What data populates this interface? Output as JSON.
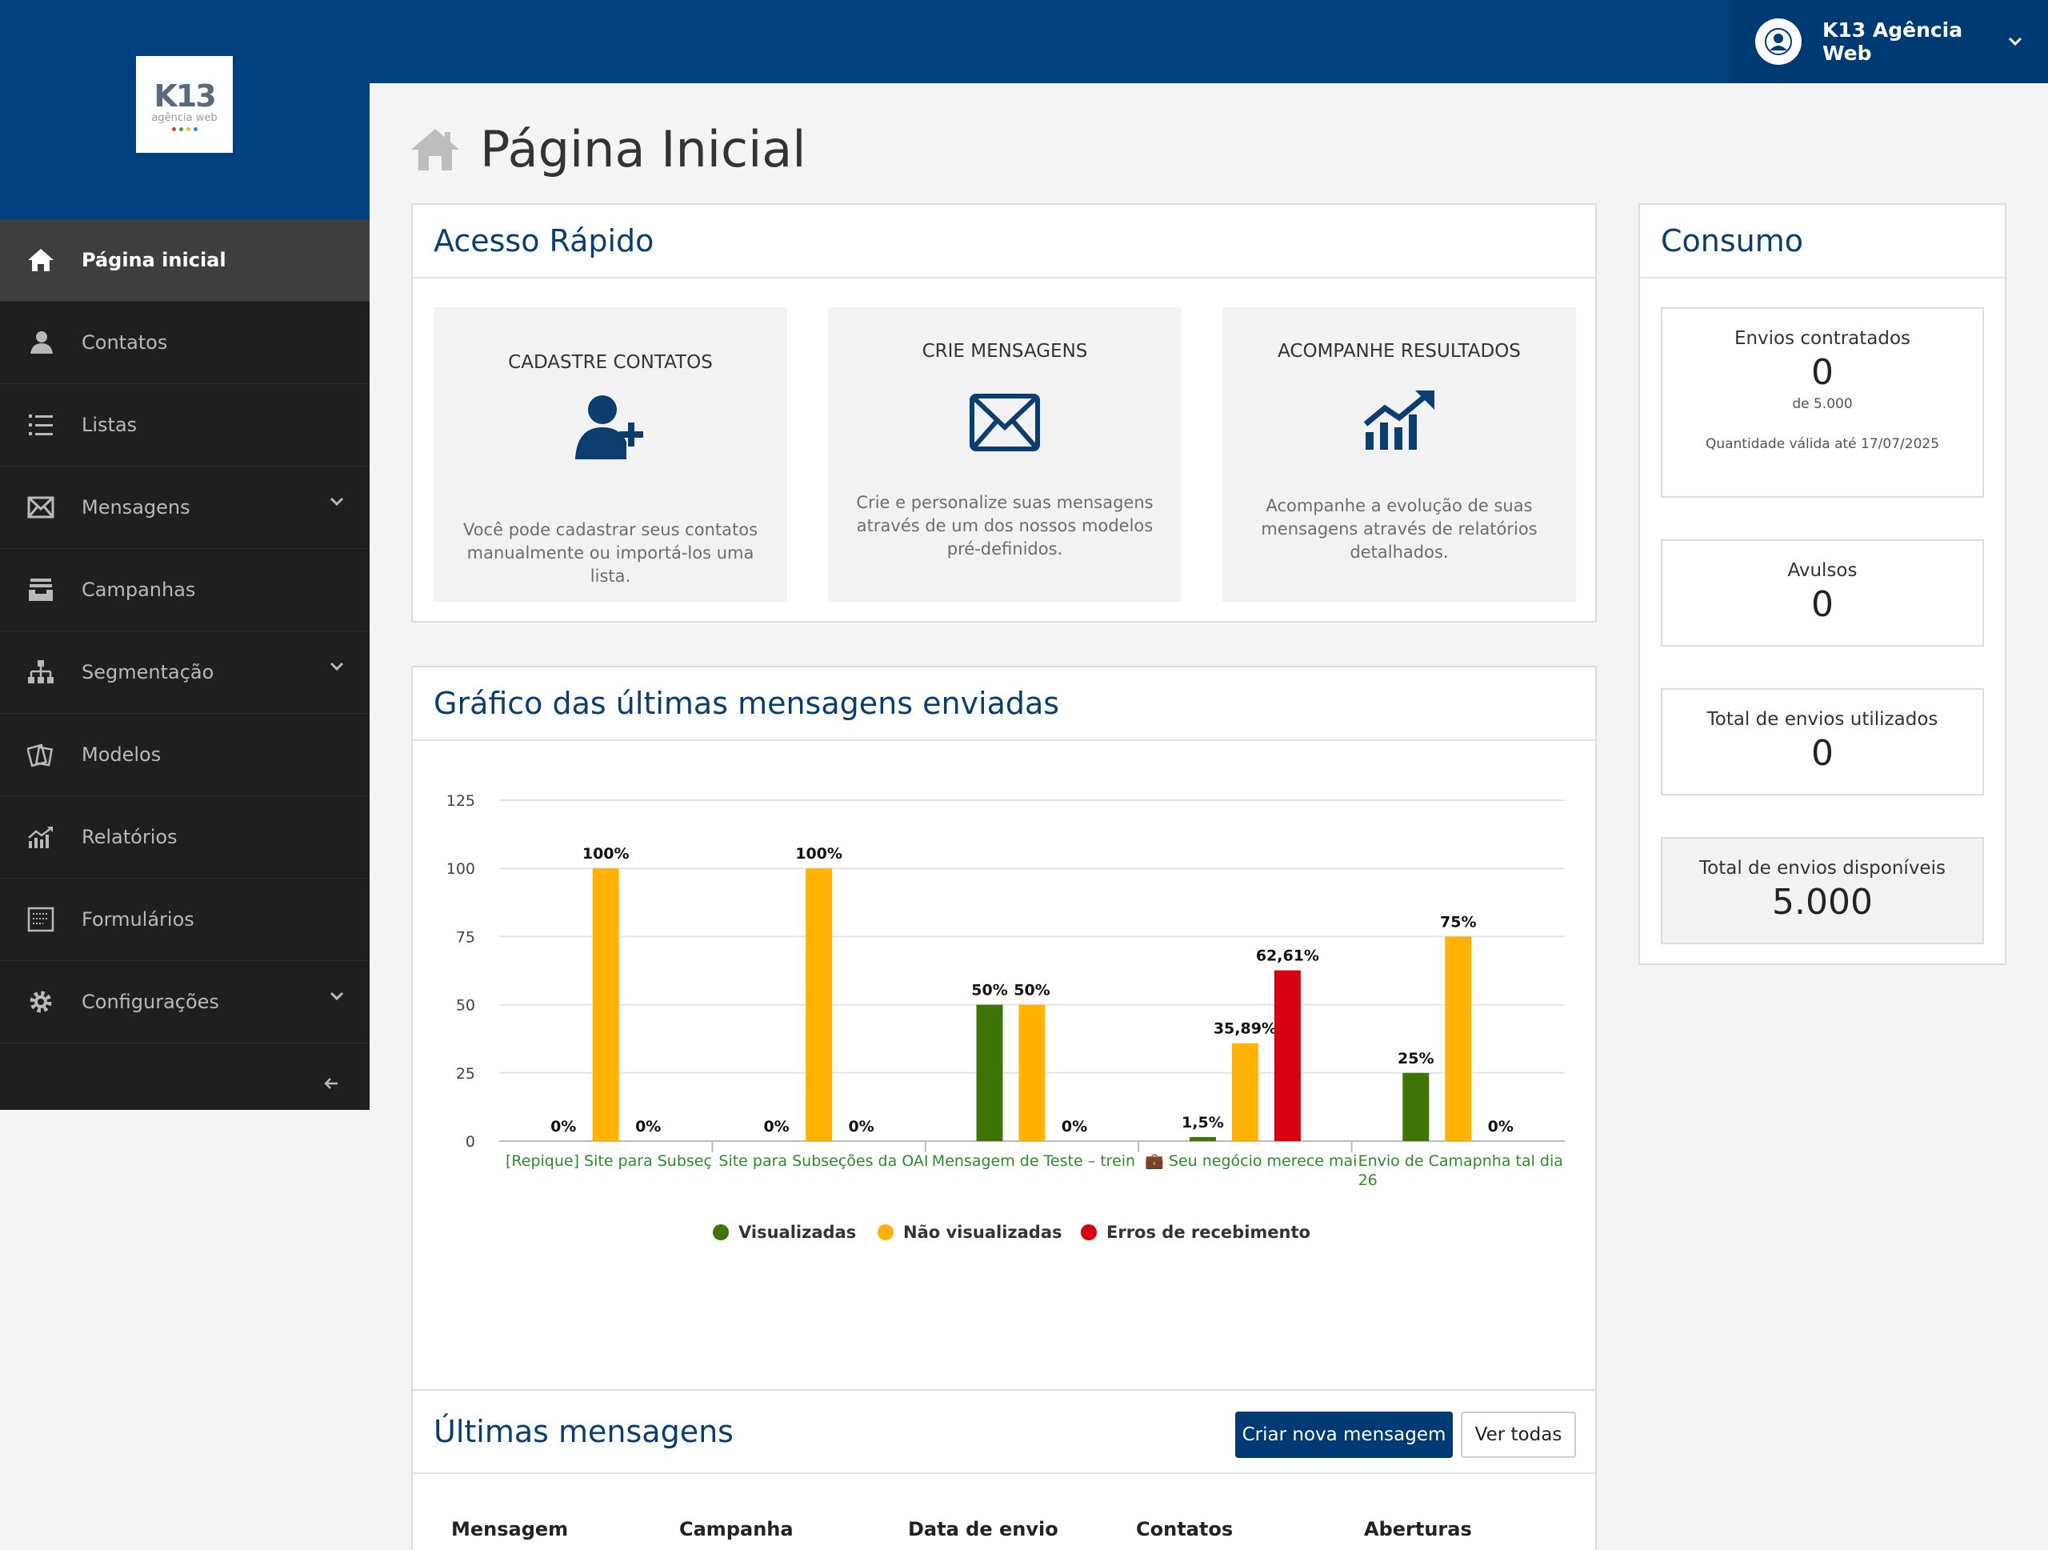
{
  "header": {
    "user_name": "K13 Agência Web"
  },
  "logo": {
    "text": "K13",
    "subtitle": "agência web"
  },
  "sidebar": {
    "items": [
      {
        "label": "Página inicial",
        "icon": "home-icon",
        "active": true
      },
      {
        "label": "Contatos",
        "icon": "contacts-icon"
      },
      {
        "label": "Listas",
        "icon": "list-icon"
      },
      {
        "label": "Mensagens",
        "icon": "envelope-icon",
        "has_submenu": true
      },
      {
        "label": "Campanhas",
        "icon": "inbox-icon"
      },
      {
        "label": "Segmentação",
        "icon": "sitemap-icon",
        "has_submenu": true
      },
      {
        "label": "Modelos",
        "icon": "templates-icon"
      },
      {
        "label": "Relatórios",
        "icon": "chart-icon"
      },
      {
        "label": "Formulários",
        "icon": "form-icon"
      },
      {
        "label": "Configurações",
        "icon": "gear-icon",
        "has_submenu": true
      }
    ]
  },
  "page": {
    "title": "Página Inicial"
  },
  "quick_access": {
    "title": "Acesso Rápido",
    "cards": [
      {
        "title": "CADASTRE CONTATOS",
        "icon": "user-add-icon",
        "description": "Você pode cadastrar seus contatos manualmente ou importá-los uma lista."
      },
      {
        "title": "CRIE MENSAGENS",
        "icon": "envelope-icon",
        "description": "Crie e personalize suas mensagens através de um dos nossos modelos pré-definidos."
      },
      {
        "title": "ACOMPANHE RESULTADOS",
        "icon": "chart-up-icon",
        "description": "Acompanhe a evolução de suas mensagens através de relatórios detalhados."
      }
    ]
  },
  "chart_panel": {
    "title": "Gráfico das últimas mensagens enviadas"
  },
  "chart_data": {
    "type": "bar",
    "categories": [
      "[Repique] Site para Subseç",
      "Site para Subseções da OAI",
      "Mensagem de Teste – trein",
      "💼 Seu negócio merece mai",
      "Envio de Camapnha tal dia 26"
    ],
    "series": [
      {
        "name": "Visualizadas",
        "color": "#3e7306",
        "values": [
          0,
          0,
          50,
          1.5,
          25
        ],
        "labels": [
          "0%",
          "0%",
          "50%",
          "1,5%",
          "25%"
        ]
      },
      {
        "name": "Não visualizadas",
        "color": "#ffb300",
        "values": [
          100,
          100,
          50,
          35.89,
          75
        ],
        "labels": [
          "100%",
          "100%",
          "50%",
          "35,89%",
          "75%"
        ]
      },
      {
        "name": "Erros de recebimento",
        "color": "#d6000f",
        "values": [
          0,
          0,
          0,
          62.61,
          0
        ],
        "labels": [
          "0%",
          "0%",
          "0%",
          "62,61%",
          "0%"
        ]
      }
    ],
    "yticks": [
      "0",
      "25",
      "50",
      "75",
      "100",
      "125"
    ],
    "ylim": [
      0,
      125
    ],
    "legend_position": "bottom",
    "grid": true
  },
  "consumption": {
    "title": "Consumo",
    "contracted": {
      "label": "Envios contratados",
      "value": "0",
      "of": "de 5.000",
      "validity": "Quantidade válida até 17/07/2025"
    },
    "avulsos": {
      "label": "Avulsos",
      "value": "0"
    },
    "used": {
      "label": "Total de envios utilizados",
      "value": "0"
    },
    "available": {
      "label": "Total de envios disponíveis",
      "value": "5.000"
    }
  },
  "latest": {
    "title": "Últimas mensagens",
    "create_button": "Criar nova mensagem",
    "view_all_button": "Ver todas",
    "columns": [
      "Mensagem",
      "Campanha",
      "Data de envio",
      "Contatos",
      "Aberturas"
    ]
  }
}
